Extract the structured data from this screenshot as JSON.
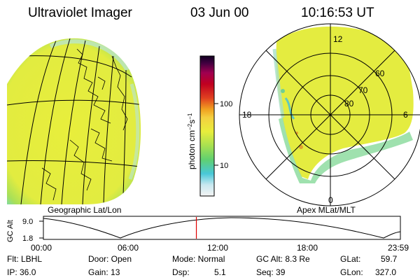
{
  "header": {
    "instrument": "Ultraviolet Imager",
    "date": "03 Jun 00",
    "time": "10:16:53 UT"
  },
  "colorbar": {
    "label": "photon cm",
    "label_sup1": "−2",
    "label_mid": "s",
    "label_sup2": "−1",
    "ticks": [
      "100",
      "10"
    ]
  },
  "panels": {
    "left_caption": "Geographic Lat/Lon",
    "right_caption": "Apex MLat/MLT",
    "polar_mlt_labels": [
      "12",
      "18",
      "6",
      "0"
    ],
    "polar_lat_labels": [
      "60",
      "70",
      "80"
    ]
  },
  "altitude_plot": {
    "ylabel": "GC Alt",
    "y_ticks": [
      "9.0",
      "1.8"
    ],
    "x_ticks": [
      "00:00",
      "06:00",
      "12:00",
      "18:00",
      "23:59"
    ],
    "current_time_fraction": 0.4285
  },
  "info": {
    "flt": "Flt: LBHL",
    "ip": "IP: 36.0",
    "door": "Door: Open",
    "gain": "Gain: 13",
    "mode": "Mode: Normal",
    "dsp_label": "Dsp:",
    "dsp_value": "5.1",
    "gcalt": "GC Alt: 8.3 Re",
    "seq": "Seq: 39",
    "glat_label": "GLat:",
    "glat_value": "59.7",
    "glon_label": "GLon:",
    "glon_value": "327.0"
  },
  "colors": {
    "aurora_yellow": "#e8ee3c",
    "aurora_green": "#9ede58",
    "aurora_cyan": "#5dd8c8",
    "marker_red": "#e00000"
  }
}
